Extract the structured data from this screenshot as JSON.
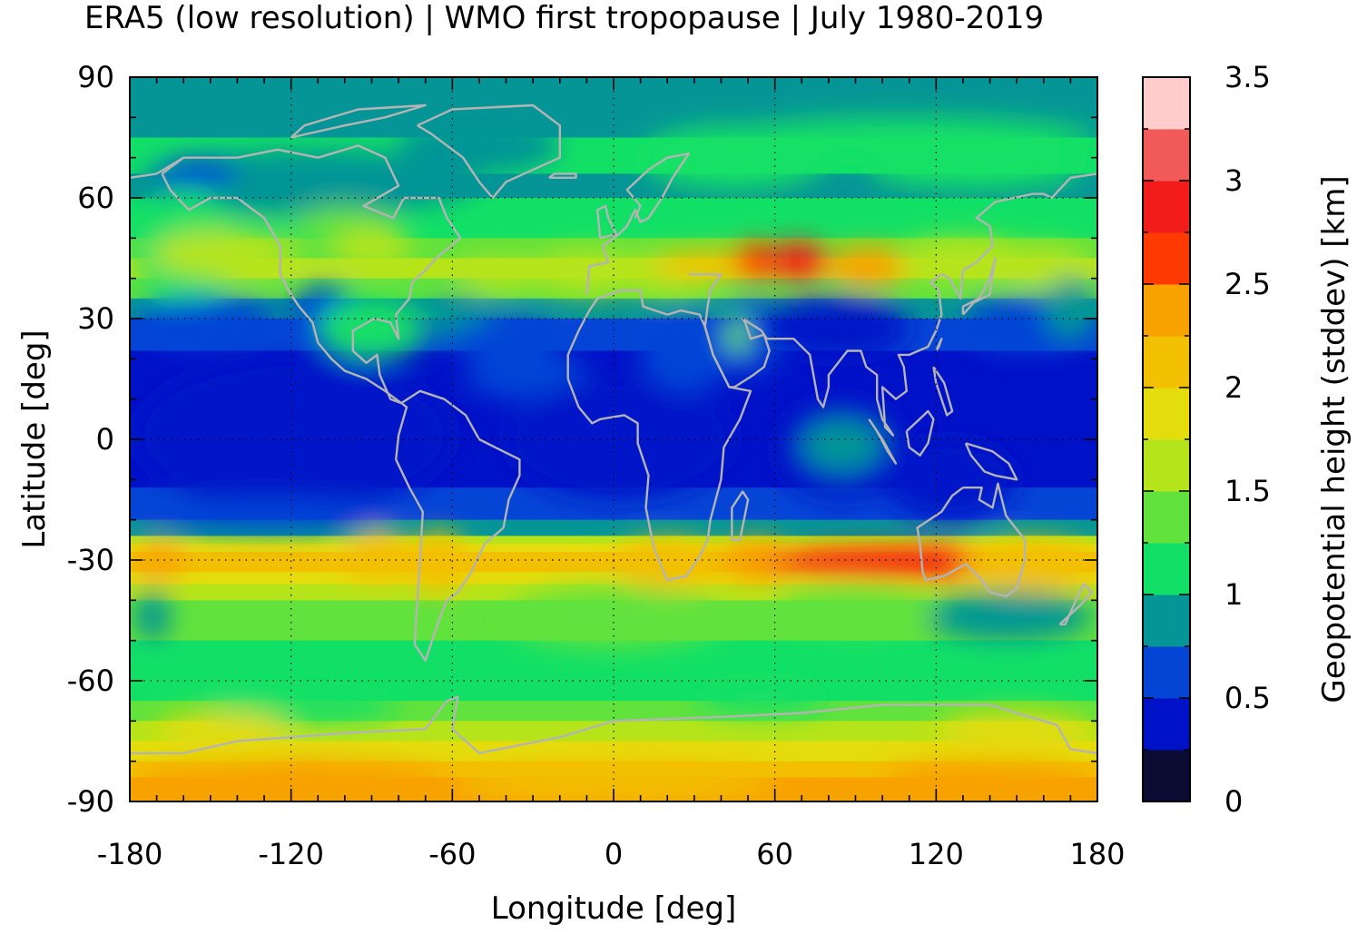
{
  "chart_data": {
    "type": "heatmap",
    "title": "ERA5 (low resolution) | WMO first tropopause | July 1980-2019",
    "xlabel": "Longitude [deg]",
    "ylabel": "Latitude [deg]",
    "colorbar_label": "Geopotential height (stddev) [km]",
    "xlim": [
      -180,
      180
    ],
    "ylim": [
      -90,
      90
    ],
    "x_ticks": [
      "-180",
      "-120",
      "-60",
      "0",
      "60",
      "120",
      "180"
    ],
    "y_ticks": [
      "90",
      "60",
      "30",
      "0",
      "-30",
      "-60",
      "-90"
    ],
    "colorbar_ticks": [
      "3.5",
      "3",
      "2.5",
      "2",
      "1.5",
      "1",
      "0.5",
      "0"
    ],
    "colorbar_range": [
      0,
      3.5
    ],
    "colorbar_levels": [
      {
        "from": 0.0,
        "to": 0.25,
        "color": "#0b0b33"
      },
      {
        "from": 0.25,
        "to": 0.5,
        "color": "#0012c8"
      },
      {
        "from": 0.5,
        "to": 0.75,
        "color": "#0545d6"
      },
      {
        "from": 0.75,
        "to": 1.0,
        "color": "#069596"
      },
      {
        "from": 1.0,
        "to": 1.25,
        "color": "#12e066"
      },
      {
        "from": 1.25,
        "to": 1.5,
        "color": "#62e23c"
      },
      {
        "from": 1.5,
        "to": 1.75,
        "color": "#b6e41a"
      },
      {
        "from": 1.75,
        "to": 2.0,
        "color": "#e4dc0c"
      },
      {
        "from": 2.0,
        "to": 2.25,
        "color": "#f2c000"
      },
      {
        "from": 2.25,
        "to": 2.5,
        "color": "#f8a200"
      },
      {
        "from": 2.5,
        "to": 2.75,
        "color": "#fe3a00"
      },
      {
        "from": 2.75,
        "to": 3.0,
        "color": "#f21c1c"
      },
      {
        "from": 3.0,
        "to": 3.25,
        "color": "#f25a5a"
      },
      {
        "from": 3.25,
        "to": 3.5,
        "color": "#ffcccc"
      }
    ],
    "grid": true,
    "coastline_color": "#b4b4b4",
    "features": [
      {
        "lon": 75,
        "lat": 43,
        "value": 2.8
      },
      {
        "lon": 95,
        "lat": -30,
        "value": 2.8
      },
      {
        "lon": -160,
        "lat": 45,
        "value": 1.7
      },
      {
        "lon": -65,
        "lat": -30,
        "value": 2.3
      },
      {
        "lon": 45,
        "lat": 27,
        "value": 1.4
      },
      {
        "lon": -155,
        "lat": 67,
        "value": 0.6
      },
      {
        "lon": -20,
        "lat": 15,
        "value": 0.4
      }
    ]
  }
}
